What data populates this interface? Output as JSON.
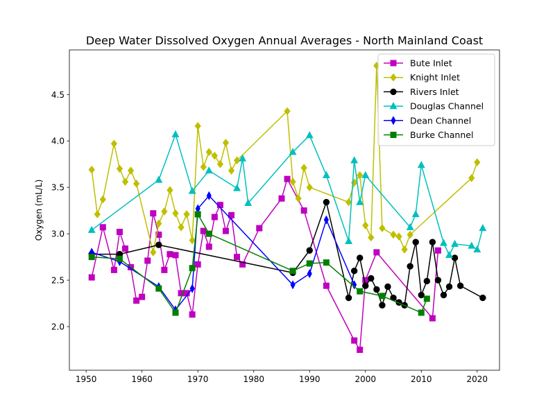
{
  "chart_data": {
    "type": "line",
    "title": "Deep Water Dissolved Oxygen Annual Averages - North Mainland Coast",
    "xlabel": "",
    "ylabel": "Oxygen (mL/L)",
    "xlim": [
      1947,
      2024
    ],
    "ylim": [
      1.53,
      4.98
    ],
    "xticks": [
      1950,
      1960,
      1970,
      1980,
      1990,
      2000,
      2010,
      2020
    ],
    "yticks": [
      2.0,
      2.5,
      3.0,
      3.5,
      4.0,
      4.5
    ],
    "xtick_labels": [
      "1950",
      "1960",
      "1970",
      "1980",
      "1990",
      "2000",
      "2010",
      "2020"
    ],
    "ytick_labels": [
      "2.0",
      "2.5",
      "3.0",
      "3.5",
      "4.0",
      "4.5"
    ],
    "legend": "top-right",
    "grid": false,
    "series": [
      {
        "name": "Bute Inlet",
        "color": "#bf00bf",
        "marker": "square",
        "x": [
          1951,
          1953,
          1955,
          1956,
          1957,
          1958,
          1959,
          1960,
          1961,
          1962,
          1963,
          1964,
          1965,
          1966,
          1967,
          1968,
          1969,
          1970,
          1971,
          1972,
          1973,
          1974,
          1975,
          1976,
          1977,
          1978,
          1981,
          1985,
          1986,
          1989,
          1993,
          1998,
          1999,
          2000,
          2002,
          2012,
          2013
        ],
        "y": [
          2.53,
          3.07,
          2.61,
          3.02,
          2.84,
          2.64,
          2.28,
          2.32,
          2.71,
          3.22,
          2.99,
          2.61,
          2.78,
          2.77,
          2.36,
          2.36,
          2.13,
          2.67,
          3.03,
          2.86,
          3.18,
          3.31,
          3.03,
          3.2,
          2.75,
          2.67,
          3.06,
          3.38,
          3.59,
          3.25,
          2.44,
          1.85,
          1.75,
          2.5,
          2.8,
          2.09,
          2.82
        ]
      },
      {
        "name": "Knight Inlet",
        "color": "#bfbf00",
        "marker": "diamond",
        "x": [
          1951,
          1952,
          1953,
          1955,
          1956,
          1957,
          1958,
          1959,
          1962,
          1963,
          1964,
          1965,
          1966,
          1967,
          1968,
          1969,
          1970,
          1971,
          1972,
          1973,
          1974,
          1975,
          1976,
          1977,
          1986,
          1987,
          1988,
          1989,
          1990,
          1997,
          1998,
          1999,
          2000,
          2001,
          2002,
          2003,
          2005,
          2006,
          2007,
          2008,
          2019,
          2020
        ],
        "y": [
          3.69,
          3.21,
          3.37,
          3.97,
          3.7,
          3.56,
          3.68,
          3.54,
          2.8,
          3.11,
          3.24,
          3.47,
          3.22,
          3.07,
          3.21,
          2.93,
          4.16,
          3.72,
          3.88,
          3.84,
          3.75,
          3.98,
          3.68,
          3.79,
          4.32,
          3.56,
          3.38,
          3.71,
          3.5,
          3.34,
          3.55,
          3.63,
          3.09,
          2.96,
          4.81,
          3.06,
          2.99,
          2.97,
          2.83,
          2.99,
          3.6,
          3.77
        ]
      },
      {
        "name": "Rivers Inlet",
        "color": "#000000",
        "marker": "circle",
        "x": [
          1951,
          1956,
          1963,
          1987,
          1990,
          1993,
          1997,
          1998,
          1999,
          2000,
          2001,
          2002,
          2003,
          2004,
          2005,
          2006,
          2007,
          2008,
          2009,
          2010,
          2011,
          2012,
          2013,
          2014,
          2015,
          2016,
          2017,
          2021
        ],
        "y": [
          2.78,
          2.78,
          2.88,
          2.58,
          2.82,
          3.34,
          2.31,
          2.6,
          2.74,
          2.44,
          2.52,
          2.4,
          2.23,
          2.43,
          2.31,
          2.26,
          2.23,
          2.65,
          2.91,
          2.34,
          2.49,
          2.91,
          2.5,
          2.34,
          2.43,
          2.74,
          2.44,
          2.31
        ]
      },
      {
        "name": "Douglas Channel",
        "color": "#00bfbf",
        "marker": "triangle",
        "x": [
          1951,
          1963,
          1966,
          1969,
          1972,
          1977,
          1978,
          1979,
          1987,
          1990,
          1993,
          1997,
          1998,
          1999,
          2000,
          2008,
          2009,
          2010,
          2014,
          2015,
          2016,
          2019,
          2020,
          2021
        ],
        "y": [
          3.04,
          3.58,
          4.07,
          3.46,
          3.68,
          3.49,
          3.81,
          3.33,
          3.88,
          4.06,
          3.63,
          2.92,
          3.79,
          3.34,
          3.63,
          3.07,
          3.21,
          3.74,
          2.9,
          2.77,
          2.89,
          2.87,
          2.83,
          3.06
        ]
      },
      {
        "name": "Dean Channel",
        "color": "#0000ff",
        "marker": "thin_diamond",
        "x": [
          1951,
          1956,
          1963,
          1966,
          1969,
          1970,
          1972,
          1987,
          1990,
          1993,
          1998
        ],
        "y": [
          2.8,
          2.7,
          2.43,
          2.18,
          2.41,
          3.27,
          3.41,
          2.45,
          2.57,
          3.15,
          2.45
        ]
      },
      {
        "name": "Burke Channel",
        "color": "#008000",
        "marker": "square",
        "x": [
          1951,
          1956,
          1963,
          1966,
          1969,
          1970,
          1972,
          1987,
          1990,
          1993,
          1999,
          2003,
          2010,
          2011
        ],
        "y": [
          2.75,
          2.73,
          2.41,
          2.15,
          2.63,
          3.21,
          3.0,
          2.6,
          2.68,
          2.69,
          2.38,
          2.33,
          2.15,
          2.3
        ]
      }
    ]
  }
}
